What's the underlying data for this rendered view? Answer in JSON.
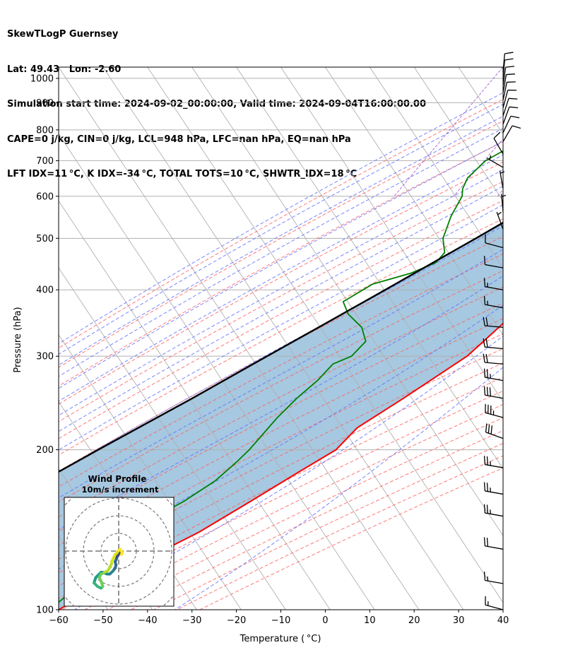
{
  "header": {
    "title": "SkewTLogP Guernsey",
    "location": "Lat: 49.43   Lon: -2.60",
    "times": "Simulation start time: 2024-09-02_00:00:00, Valid time: 2024-09-04T16:00:00.00",
    "params1": "CAPE=0 j/kg, CIN=0 j/kg, LCL=948 hPa, LFC=nan hPa, EQ=nan hPa",
    "params2": "LFT IDX=11$^\\circ$C, K IDX=-34$^\\circ$C, TOTAL TOTS=10$^\\circ$C, SHWTR_IDX=18$^\\circ$C"
  },
  "header_display": {
    "params2": "LFT IDX=11 °C, K IDX=-34 °C, TOTAL TOTS=10 °C, SHWTR_IDX=18 °C"
  },
  "chart_data": {
    "type": "line",
    "chart_kind": "skew-T log-P",
    "xlabel": "Temperature ($^\\circ$C)",
    "xlabel_display": "Temperature ( °C)",
    "ylabel": "Pressure (hPa)",
    "xlim": [
      -60,
      40
    ],
    "ylim": [
      1050,
      100
    ],
    "y_scale": "log",
    "x_ticks": [
      -60,
      -50,
      -40,
      -30,
      -20,
      -10,
      0,
      10,
      20,
      30,
      40
    ],
    "y_ticks": [
      1000,
      900,
      800,
      700,
      600,
      500,
      400,
      300,
      200,
      100
    ],
    "grid": true,
    "colors": {
      "temperature": "#ff0000",
      "dewpoint": "#008000",
      "parcel": "#000000",
      "cape_fill": "#a6c8e0",
      "dry_adiabats": "#ff6060",
      "moist_adiabats": "#6070ff",
      "mixing_ratio": "#9a4fc8",
      "isotherms": "#b0b0b0"
    },
    "series": [
      {
        "key": "temperature",
        "points": [
          [
            1028,
            16
          ],
          [
            1000,
            13.5
          ],
          [
            975,
            12.8
          ],
          [
            950,
            13.4
          ],
          [
            925,
            14.2
          ],
          [
            900,
            14.6
          ],
          [
            875,
            15.4
          ],
          [
            850,
            16
          ],
          [
            800,
            15.4
          ],
          [
            750,
            15
          ],
          [
            700,
            14
          ],
          [
            650,
            13.2
          ],
          [
            600,
            12
          ],
          [
            550,
            10
          ],
          [
            500,
            7
          ],
          [
            450,
            4
          ],
          [
            400,
            1.5
          ],
          [
            350,
            -2.5
          ],
          [
            320,
            -4.5
          ],
          [
            300,
            -6
          ],
          [
            250,
            -14
          ],
          [
            220,
            -20
          ],
          [
            200,
            -21.5
          ],
          [
            180,
            -27
          ],
          [
            160,
            -33
          ],
          [
            140,
            -40
          ],
          [
            130,
            -45
          ],
          [
            115,
            -52
          ],
          [
            100,
            -60
          ]
        ]
      },
      {
        "key": "dewpoint",
        "points": [
          [
            1028,
            12
          ],
          [
            1000,
            11
          ],
          [
            980,
            9
          ],
          [
            960,
            7
          ],
          [
            940,
            5
          ],
          [
            920,
            1
          ],
          [
            900,
            -2
          ],
          [
            880,
            -6
          ],
          [
            850,
            -14
          ],
          [
            830,
            -22
          ],
          [
            800,
            -22
          ],
          [
            780,
            -24
          ],
          [
            750,
            -27
          ],
          [
            700,
            -31
          ],
          [
            650,
            -32.5
          ],
          [
            620,
            -32
          ],
          [
            600,
            -31
          ],
          [
            550,
            -30.5
          ],
          [
            500,
            -29
          ],
          [
            470,
            -26.5
          ],
          [
            450,
            -27
          ],
          [
            430,
            -31
          ],
          [
            410,
            -38
          ],
          [
            380,
            -42
          ],
          [
            360,
            -39
          ],
          [
            340,
            -34
          ],
          [
            320,
            -31
          ],
          [
            300,
            -32
          ],
          [
            290,
            -35
          ],
          [
            270,
            -36
          ],
          [
            250,
            -38
          ],
          [
            230,
            -39.5
          ],
          [
            200,
            -41
          ],
          [
            190,
            -42
          ],
          [
            175,
            -44
          ],
          [
            160,
            -48
          ],
          [
            150,
            -52
          ],
          [
            140,
            -56
          ],
          [
            120,
            -57
          ],
          [
            100,
            -62
          ]
        ]
      },
      {
        "key": "parcel",
        "points": [
          [
            1028,
            16.5
          ],
          [
            1000,
            13
          ],
          [
            948,
            11.8
          ],
          [
            900,
            9.3
          ],
          [
            850,
            6.5
          ],
          [
            800,
            3.5
          ],
          [
            750,
            0.3
          ],
          [
            700,
            -3.3
          ],
          [
            650,
            -7.2
          ],
          [
            600,
            -11.5
          ],
          [
            550,
            -16.3
          ],
          [
            500,
            -21.6
          ],
          [
            450,
            -27.6
          ],
          [
            400,
            -34.3
          ],
          [
            350,
            -42
          ],
          [
            300,
            -51
          ],
          [
            250,
            -61.5
          ],
          [
            200,
            -75
          ],
          [
            150,
            -92
          ],
          [
            100,
            -117
          ]
        ]
      }
    ],
    "wind_barbs": {
      "pressures": [
        1028,
        1000,
        970,
        940,
        910,
        880,
        850,
        820,
        790,
        760,
        720,
        680,
        620,
        560,
        520,
        480,
        440,
        400,
        370,
        340,
        310,
        290,
        270,
        250,
        230,
        210,
        185,
        165,
        150,
        130,
        112,
        100
      ],
      "knots": [
        10,
        10,
        10,
        10,
        10,
        10,
        10,
        10,
        10,
        10,
        10,
        5,
        5,
        5,
        5,
        10,
        10,
        15,
        15,
        20,
        20,
        20,
        25,
        30,
        35,
        30,
        25,
        25,
        25,
        20,
        15,
        15
      ],
      "directions_deg": [
        5,
        5,
        8,
        10,
        12,
        15,
        18,
        20,
        25,
        30,
        330,
        300,
        350,
        355,
        340,
        285,
        280,
        280,
        280,
        275,
        275,
        275,
        280,
        280,
        285,
        290,
        280,
        280,
        280,
        280,
        280,
        285
      ]
    },
    "hodograph": {
      "title": "Wind Profile",
      "subtitle": "10m/s increment",
      "rings_ms": [
        10,
        20,
        30,
        40
      ],
      "points_ms": [
        [
          0.5,
          -1.5
        ],
        [
          0.3,
          -1
        ],
        [
          -0.2,
          -2
        ],
        [
          -0.8,
          -3
        ],
        [
          -1.5,
          -5
        ],
        [
          -2,
          -6
        ],
        [
          -1.5,
          -8
        ],
        [
          -2,
          -9.5
        ],
        [
          -3,
          -11
        ],
        [
          -5,
          -13
        ],
        [
          -6.5,
          -13
        ],
        [
          -9,
          -12
        ],
        [
          -10,
          -12
        ],
        [
          -11,
          -13
        ],
        [
          -12,
          -14
        ],
        [
          -13,
          -15
        ],
        [
          -14,
          -18
        ],
        [
          -12,
          -20
        ],
        [
          -10,
          -21
        ],
        [
          -9,
          -20
        ],
        [
          -10,
          -17
        ],
        [
          -11,
          -15
        ],
        [
          -10,
          -13
        ],
        [
          -8,
          -12
        ],
        [
          -6,
          -11
        ],
        [
          -5,
          -9
        ],
        [
          -4,
          -7
        ],
        [
          -4,
          -6
        ],
        [
          -3,
          -4
        ],
        [
          -2,
          -2
        ],
        [
          -1,
          -1
        ],
        [
          0,
          0.5
        ],
        [
          1,
          1
        ],
        [
          2,
          -1
        ],
        [
          1.5,
          -2
        ]
      ],
      "colors": [
        "#3e4a89",
        "#31688e",
        "#26828e",
        "#1f9e89",
        "#35b779",
        "#6ece58",
        "#b5de2b",
        "#d8e21c",
        "#fde725"
      ]
    }
  }
}
